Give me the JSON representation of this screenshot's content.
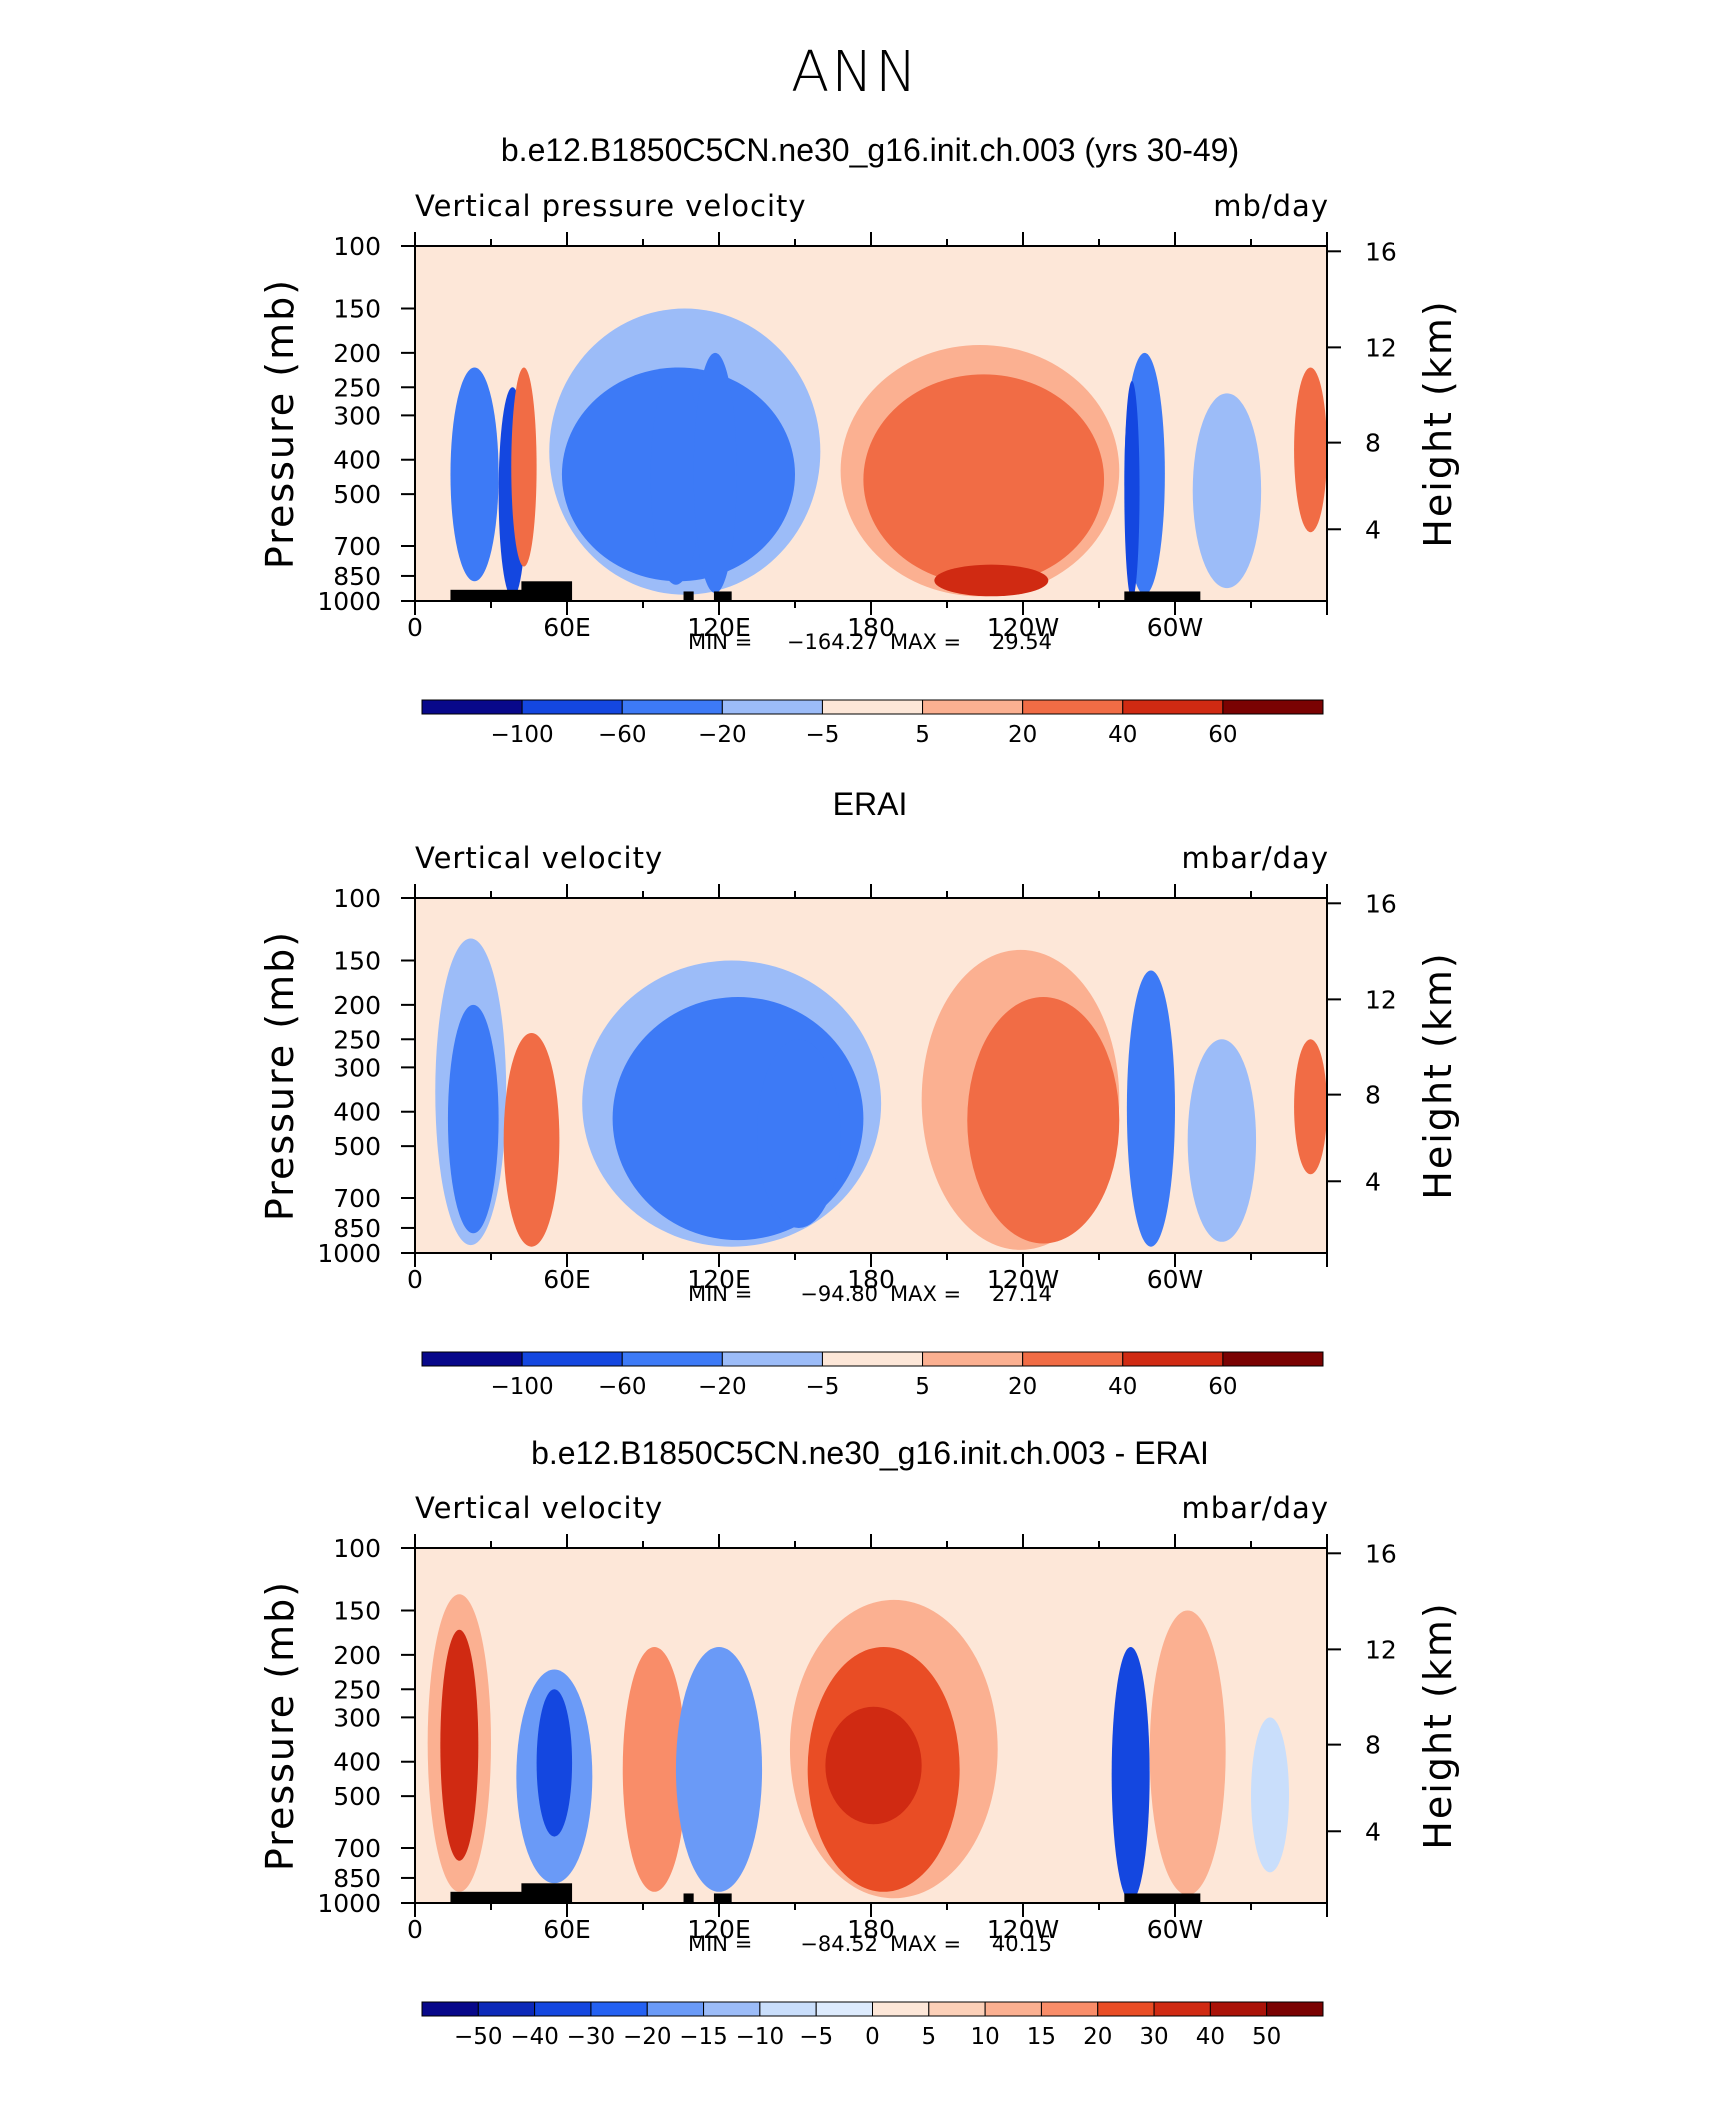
{
  "page_title": "ANN",
  "colors": {
    "scale": [
      "#08088a",
      "#0c29b9",
      "#1447e0",
      "#2461f2",
      "#3d7af6",
      "#6a9af7",
      "#9cbcf8",
      "#c9defb",
      "#ddebfd",
      "#fde7d8",
      "#fcd0b8",
      "#fbb091",
      "#f98d69",
      "#f16c45",
      "#e94d25",
      "#d02a12",
      "#aa1208",
      "#7a0202"
    ],
    "land": "#000000",
    "frame": "#000000"
  },
  "panels": [
    {
      "title": "b.e12.B1850C5CN.ne30_g16.init.ch.003 (yrs 30-49)",
      "field": "Vertical pressure velocity",
      "units": "mb/day",
      "stats": {
        "min_label": "MIN =",
        "min": "−164.27",
        "max_label": "MAX =",
        "max": "29.54"
      },
      "colorbar_labels": [
        "−100",
        "−60",
        "−20",
        "−5",
        "5",
        "20",
        "40",
        "60"
      ]
    },
    {
      "title": "ERAI",
      "field": "Vertical velocity",
      "units": "mbar/day",
      "stats": {
        "min_label": "MIN =",
        "min": "−94.80",
        "max_label": "MAX =",
        "max": "27.14"
      },
      "colorbar_labels": [
        "−100",
        "−60",
        "−20",
        "−5",
        "5",
        "20",
        "40",
        "60"
      ]
    },
    {
      "title": "b.e12.B1850C5CN.ne30_g16.init.ch.003 - ERAI",
      "field": "Vertical velocity",
      "units": "mbar/day",
      "stats": {
        "min_label": "MIN =",
        "min": "−84.52",
        "max_label": "MAX =",
        "max": "40.15"
      },
      "colorbar_labels": [
        "−50",
        "−40",
        "−30",
        "−20",
        "−15",
        "−10",
        "−5",
        "0",
        "5",
        "10",
        "15",
        "20",
        "30",
        "40",
        "50"
      ]
    }
  ],
  "chart_data": [
    {
      "type": "heatmap",
      "title": "b.e12.B1850C5CN.ne30_g16.init.ch.003 (yrs 30-49)",
      "xlabel": "",
      "ylabel": "Pressure (mb)",
      "y2label": "Height (km)",
      "x_ticks": [
        "0",
        "60E",
        "120E",
        "180",
        "120W",
        "60W"
      ],
      "y_ticks": [
        "100",
        "150",
        "200",
        "250",
        "300",
        "400",
        "500",
        "700",
        "850",
        "1000"
      ],
      "y2_ticks": [
        "16",
        "12",
        "8",
        "4"
      ],
      "xlim": [
        0,
        360
      ],
      "ylim": [
        1000,
        100
      ],
      "y_scale": "log",
      "levels": [
        -100,
        -60,
        -20,
        -5,
        5,
        20,
        40,
        60
      ],
      "min": -164.27,
      "max": 29.54,
      "regions": [
        {
          "lon": [
            14,
            33
          ],
          "p": [
            220,
            880
          ],
          "value": -40
        },
        {
          "lon": [
            33,
            44
          ],
          "p": [
            250,
            980
          ],
          "value": -80
        },
        {
          "lon": [
            38,
            48
          ],
          "p": [
            220,
            800
          ],
          "value": 20
        },
        {
          "lon": [
            53,
            160
          ],
          "p": [
            150,
            960
          ],
          "value": -20
        },
        {
          "lon": [
            58,
            150
          ],
          "p": [
            220,
            880
          ],
          "value": -40
        },
        {
          "lon": [
            93,
            113
          ],
          "p": [
            220,
            900
          ],
          "value": -60
        },
        {
          "lon": [
            110,
            127
          ],
          "p": [
            200,
            950
          ],
          "value": -60
        },
        {
          "lon": [
            168,
            278
          ],
          "p": [
            190,
            970
          ],
          "value": 5
        },
        {
          "lon": [
            177,
            272
          ],
          "p": [
            230,
            900
          ],
          "value": 20
        },
        {
          "lon": [
            205,
            250
          ],
          "p": [
            790,
            970
          ],
          "value": 40
        },
        {
          "lon": [
            280,
            296
          ],
          "p": [
            200,
            960
          ],
          "value": -40
        },
        {
          "lon": [
            280,
            286
          ],
          "p": [
            240,
            990
          ],
          "value": -100
        },
        {
          "lon": [
            307,
            334
          ],
          "p": [
            260,
            920
          ],
          "value": -20
        },
        {
          "lon": [
            347,
            360
          ],
          "p": [
            220,
            640
          ],
          "value": 20
        }
      ]
    },
    {
      "type": "heatmap",
      "title": "ERAI",
      "xlabel": "",
      "ylabel": "Pressure (mb)",
      "y2label": "Height (km)",
      "x_ticks": [
        "0",
        "60E",
        "120E",
        "180",
        "120W",
        "60W"
      ],
      "y_ticks": [
        "100",
        "150",
        "200",
        "250",
        "300",
        "400",
        "500",
        "700",
        "850",
        "1000"
      ],
      "y2_ticks": [
        "16",
        "12",
        "8",
        "4"
      ],
      "xlim": [
        0,
        360
      ],
      "ylim": [
        1000,
        100
      ],
      "y_scale": "log",
      "levels": [
        -100,
        -60,
        -20,
        -5,
        5,
        20,
        40,
        60
      ],
      "min": -94.8,
      "max": 27.14,
      "regions": [
        {
          "lon": [
            8,
            36
          ],
          "p": [
            130,
            950
          ],
          "value": -20
        },
        {
          "lon": [
            13,
            33
          ],
          "p": [
            200,
            880
          ],
          "value": -40
        },
        {
          "lon": [
            35,
            57
          ],
          "p": [
            240,
            960
          ],
          "value": 20
        },
        {
          "lon": [
            58,
            192
          ],
          "p": [
            130,
            990
          ],
          "value": -5
        },
        {
          "lon": [
            66,
            184
          ],
          "p": [
            150,
            960
          ],
          "value": -20
        },
        {
          "lon": [
            78,
            177
          ],
          "p": [
            190,
            920
          ],
          "value": -40
        },
        {
          "lon": [
            135,
            168
          ],
          "p": [
            250,
            850
          ],
          "value": -60
        },
        {
          "lon": [
            200,
            278
          ],
          "p": [
            140,
            980
          ],
          "value": 5
        },
        {
          "lon": [
            218,
            278
          ],
          "p": [
            190,
            940
          ],
          "value": 20
        },
        {
          "lon": [
            281,
            300
          ],
          "p": [
            160,
            960
          ],
          "value": -40
        },
        {
          "lon": [
            305,
            332
          ],
          "p": [
            250,
            930
          ],
          "value": -20
        },
        {
          "lon": [
            347,
            360
          ],
          "p": [
            250,
            600
          ],
          "value": 20
        }
      ]
    },
    {
      "type": "heatmap",
      "title": "b.e12.B1850C5CN.ne30_g16.init.ch.003 - ERAI",
      "xlabel": "",
      "ylabel": "Pressure (mb)",
      "y2label": "Height (km)",
      "x_ticks": [
        "0",
        "60E",
        "120E",
        "180",
        "120W",
        "60W"
      ],
      "y_ticks": [
        "100",
        "150",
        "200",
        "250",
        "300",
        "400",
        "500",
        "700",
        "850",
        "1000"
      ],
      "y2_ticks": [
        "16",
        "12",
        "8",
        "4"
      ],
      "xlim": [
        0,
        360
      ],
      "ylim": [
        1000,
        100
      ],
      "y_scale": "log",
      "levels": [
        -50,
        -40,
        -30,
        -20,
        -15,
        -10,
        -5,
        0,
        5,
        10,
        15,
        20,
        30,
        40,
        50
      ],
      "min": -84.52,
      "max": 40.15,
      "regions": [
        {
          "lon": [
            5,
            30
          ],
          "p": [
            135,
            930
          ],
          "value": 10
        },
        {
          "lon": [
            10,
            25
          ],
          "p": [
            170,
            760
          ],
          "value": 30
        },
        {
          "lon": [
            40,
            70
          ],
          "p": [
            220,
            880
          ],
          "value": -20
        },
        {
          "lon": [
            48,
            62
          ],
          "p": [
            250,
            650
          ],
          "value": -40
        },
        {
          "lon": [
            82,
            107
          ],
          "p": [
            190,
            930
          ],
          "value": 15
        },
        {
          "lon": [
            103,
            137
          ],
          "p": [
            190,
            930
          ],
          "value": -20
        },
        {
          "lon": [
            148,
            230
          ],
          "p": [
            140,
            970
          ],
          "value": 10
        },
        {
          "lon": [
            155,
            215
          ],
          "p": [
            190,
            930
          ],
          "value": 20
        },
        {
          "lon": [
            162,
            200
          ],
          "p": [
            280,
            600
          ],
          "value": 30
        },
        {
          "lon": [
            275,
            290
          ],
          "p": [
            190,
            990
          ],
          "value": -40
        },
        {
          "lon": [
            290,
            320
          ],
          "p": [
            150,
            950
          ],
          "value": 10
        },
        {
          "lon": [
            330,
            345
          ],
          "p": [
            300,
            820
          ],
          "value": -10
        }
      ]
    }
  ]
}
